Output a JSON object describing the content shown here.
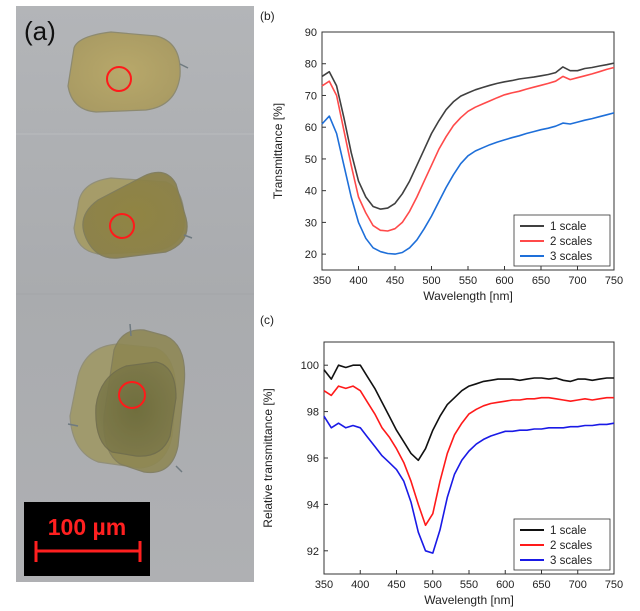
{
  "panel_a": {
    "label": "(a)",
    "scale_bar_text": "100 µm",
    "circle_color": "#ff1a1a",
    "scale_bar_color": "#ff2020"
  },
  "chart_data": [
    {
      "panel_label": "(b)",
      "type": "line",
      "xlabel": "Wavelength [nm]",
      "ylabel": "Transmittance [%]",
      "xlim": [
        350,
        750
      ],
      "ylim": [
        15,
        90
      ],
      "xticks": [
        350,
        400,
        450,
        500,
        550,
        600,
        650,
        700,
        750
      ],
      "yticks": [
        20,
        30,
        40,
        50,
        60,
        70,
        80,
        90
      ],
      "legend_position": "bottom-right",
      "grid": false,
      "x": [
        350,
        360,
        370,
        380,
        390,
        400,
        410,
        420,
        430,
        440,
        450,
        460,
        470,
        480,
        490,
        500,
        510,
        520,
        530,
        540,
        550,
        560,
        570,
        580,
        590,
        600,
        610,
        620,
        630,
        640,
        650,
        660,
        670,
        680,
        690,
        700,
        710,
        720,
        730,
        740,
        750
      ],
      "series": [
        {
          "name": "1 scale",
          "color": "#404040",
          "values": [
            76,
            77.5,
            73,
            63,
            52,
            43,
            38,
            35,
            34.2,
            34.5,
            36,
            39,
            43,
            48,
            53,
            58,
            62,
            65.5,
            68,
            69.8,
            70.8,
            71.8,
            72.5,
            73.2,
            73.8,
            74.3,
            74.7,
            75.2,
            75.5,
            75.8,
            76.2,
            76.6,
            77.2,
            79,
            77.8,
            77.8,
            78.5,
            78.8,
            79.3,
            79.7,
            80.2
          ]
        },
        {
          "name": "2 scales",
          "color": "#ff4a4a",
          "values": [
            73,
            74.5,
            70,
            59,
            48,
            38,
            33,
            29,
            27.5,
            27.3,
            28,
            30,
            33.5,
            38,
            43,
            48,
            53,
            57,
            60.5,
            63,
            65,
            66.3,
            67.3,
            68.3,
            69.3,
            70.2,
            70.8,
            71.3,
            72,
            72.6,
            73.2,
            73.8,
            74.5,
            76,
            75,
            75.6,
            76.2,
            76.8,
            77.5,
            78.2,
            78.8
          ]
        },
        {
          "name": "3 scales",
          "color": "#1e6fd9",
          "values": [
            61,
            63.5,
            58,
            48,
            38,
            30,
            25,
            22,
            20.8,
            20.2,
            20,
            20.5,
            22,
            24.5,
            28,
            32,
            36.5,
            41,
            45,
            48.5,
            51,
            52.5,
            53.5,
            54.5,
            55.3,
            56,
            56.7,
            57.3,
            58,
            58.6,
            59.2,
            59.7,
            60.3,
            61.3,
            61,
            61.6,
            62.2,
            62.7,
            63.3,
            63.9,
            64.5
          ]
        }
      ]
    },
    {
      "panel_label": "(c)",
      "type": "line",
      "xlabel": "Wavelength [nm]",
      "ylabel": "Relative transmittance [%]",
      "xlim": [
        350,
        750
      ],
      "ylim": [
        91,
        101
      ],
      "xticks": [
        350,
        400,
        450,
        500,
        550,
        600,
        650,
        700,
        750
      ],
      "yticks": [
        92,
        94,
        96,
        98,
        100
      ],
      "legend_position": "bottom-right",
      "grid": false,
      "x": [
        350,
        360,
        370,
        380,
        390,
        400,
        410,
        420,
        430,
        440,
        450,
        460,
        470,
        480,
        490,
        500,
        510,
        520,
        530,
        540,
        550,
        560,
        570,
        580,
        590,
        600,
        610,
        620,
        630,
        640,
        650,
        660,
        670,
        680,
        690,
        700,
        710,
        720,
        730,
        740,
        750
      ],
      "series": [
        {
          "name": "1 scale",
          "color": "#111111",
          "values": [
            99.8,
            99.4,
            100,
            99.9,
            100,
            100,
            99.5,
            99,
            98.4,
            97.8,
            97.2,
            96.7,
            96.2,
            95.9,
            96.4,
            97.2,
            97.8,
            98.3,
            98.6,
            98.9,
            99.1,
            99.2,
            99.3,
            99.35,
            99.4,
            99.4,
            99.4,
            99.35,
            99.4,
            99.45,
            99.45,
            99.4,
            99.45,
            99.35,
            99.3,
            99.4,
            99.4,
            99.35,
            99.4,
            99.45,
            99.45
          ]
        },
        {
          "name": "2 scales",
          "color": "#ff1a1a",
          "values": [
            98.9,
            98.7,
            99.1,
            99,
            99.1,
            98.9,
            98.4,
            97.9,
            97.3,
            96.9,
            96.4,
            95.8,
            95,
            94,
            93.1,
            93.6,
            95,
            96.2,
            97,
            97.5,
            97.9,
            98.1,
            98.25,
            98.35,
            98.4,
            98.45,
            98.5,
            98.5,
            98.55,
            98.55,
            98.6,
            98.6,
            98.55,
            98.5,
            98.45,
            98.5,
            98.55,
            98.5,
            98.55,
            98.6,
            98.6
          ]
        },
        {
          "name": "3 scales",
          "color": "#1a1ae6",
          "values": [
            97.8,
            97.3,
            97.5,
            97.3,
            97.4,
            97.3,
            96.9,
            96.5,
            96.1,
            95.8,
            95.5,
            95,
            94.1,
            92.8,
            92,
            91.9,
            92.9,
            94.3,
            95.3,
            95.9,
            96.3,
            96.6,
            96.8,
            96.95,
            97.05,
            97.15,
            97.15,
            97.2,
            97.2,
            97.25,
            97.25,
            97.3,
            97.3,
            97.3,
            97.35,
            97.35,
            97.4,
            97.4,
            97.45,
            97.45,
            97.5
          ]
        }
      ]
    }
  ]
}
